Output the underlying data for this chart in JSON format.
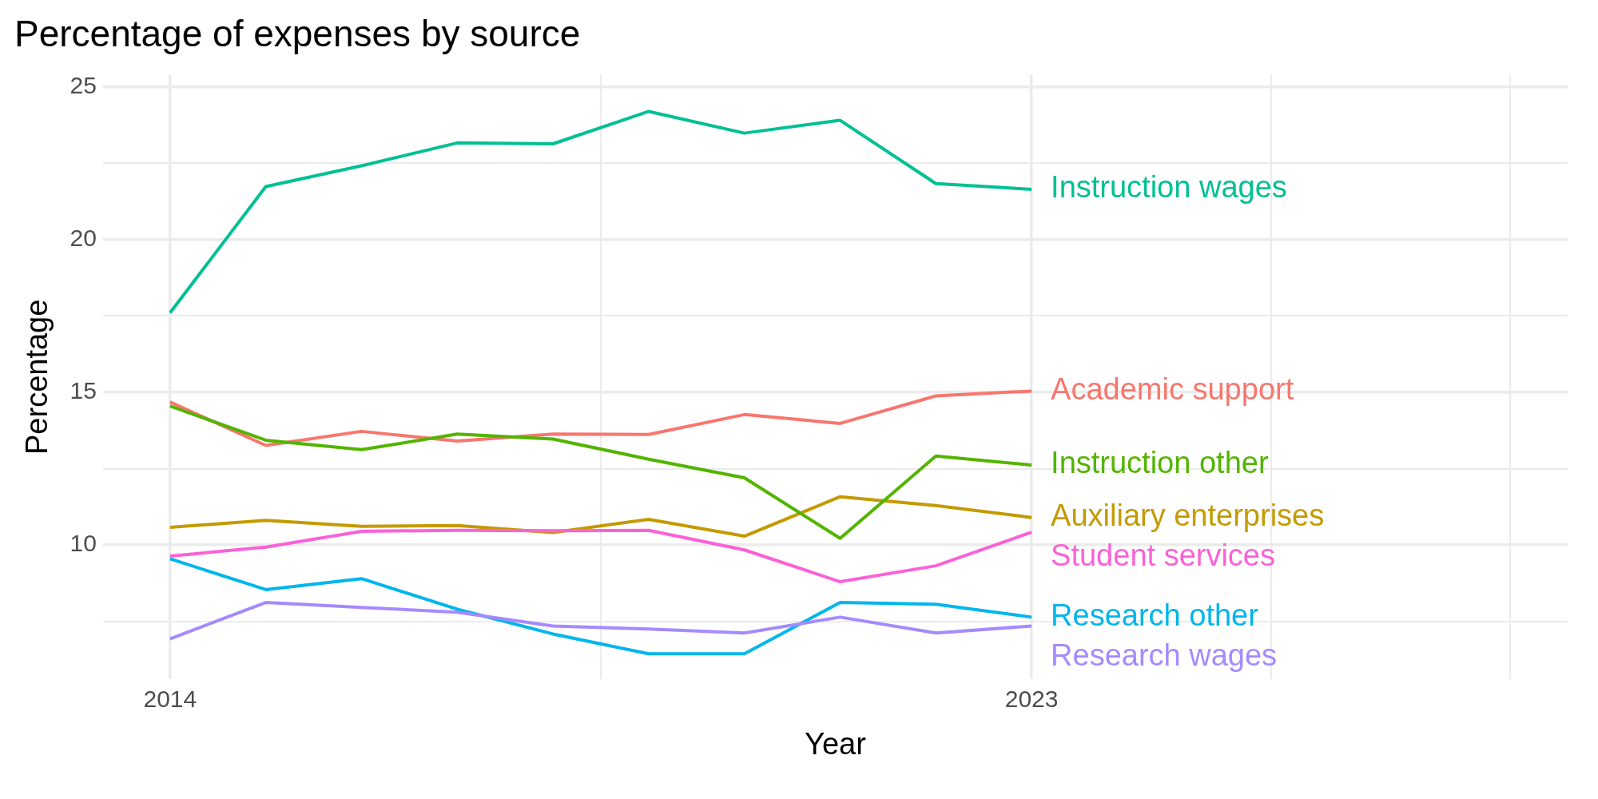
{
  "chart_data": {
    "type": "line",
    "title": "Percentage of expenses by source",
    "xlabel": "Year",
    "ylabel": "Percentage",
    "x": [
      2014,
      2015,
      2016,
      2017,
      2018,
      2019,
      2020,
      2021,
      2022,
      2023
    ],
    "xlim": [
      2013.3,
      2028.6
    ],
    "xticks": [
      2014,
      {
        "value": 2018.5,
        "label": null
      },
      2023,
      {
        "value": 2025.5,
        "label": null
      },
      {
        "value": 2028,
        "label": null
      }
    ],
    "ylim": [
      5.6,
      25.4
    ],
    "yticks": [
      {
        "value": 7.5,
        "label": null
      },
      10,
      {
        "value": 12.5,
        "label": null
      },
      15,
      {
        "value": 17.5,
        "label": null
      },
      20,
      {
        "value": 22.5,
        "label": null
      },
      25
    ],
    "grid": true,
    "legend": false,
    "marker": "none",
    "line_style": "solid",
    "series": [
      {
        "name": "Academic support",
        "color": "#f8766d",
        "values": [
          14.68,
          13.26,
          13.72,
          13.4,
          13.63,
          13.62,
          14.27,
          13.98,
          14.88,
          15.04
        ]
      },
      {
        "name": "Auxiliary enterprises",
        "color": "#c49a00",
        "values": [
          10.58,
          10.81,
          10.61,
          10.64,
          10.41,
          10.84,
          10.29,
          11.58,
          11.29,
          10.9
        ]
      },
      {
        "name": "Instruction other",
        "color": "#53b400",
        "values": [
          14.55,
          13.43,
          13.12,
          13.63,
          13.47,
          12.81,
          12.2,
          10.22,
          12.91,
          12.62
        ]
      },
      {
        "name": "Instruction wages",
        "color": "#00c094",
        "values": [
          17.6,
          21.73,
          22.41,
          23.16,
          23.13,
          24.19,
          23.48,
          23.9,
          21.83,
          21.64
        ]
      },
      {
        "name": "Research other",
        "color": "#00b6eb",
        "values": [
          9.55,
          8.54,
          8.9,
          7.9,
          7.09,
          6.44,
          6.44,
          8.12,
          8.06,
          7.64
        ]
      },
      {
        "name": "Research wages",
        "color": "#a58aff",
        "values": [
          6.93,
          8.12,
          7.96,
          7.8,
          7.35,
          7.25,
          7.12,
          7.64,
          7.12,
          7.35
        ]
      },
      {
        "name": "Student services",
        "color": "#fb61d7",
        "values": [
          9.64,
          9.93,
          10.45,
          10.48,
          10.47,
          10.48,
          9.84,
          8.8,
          9.32,
          10.42
        ]
      }
    ]
  }
}
